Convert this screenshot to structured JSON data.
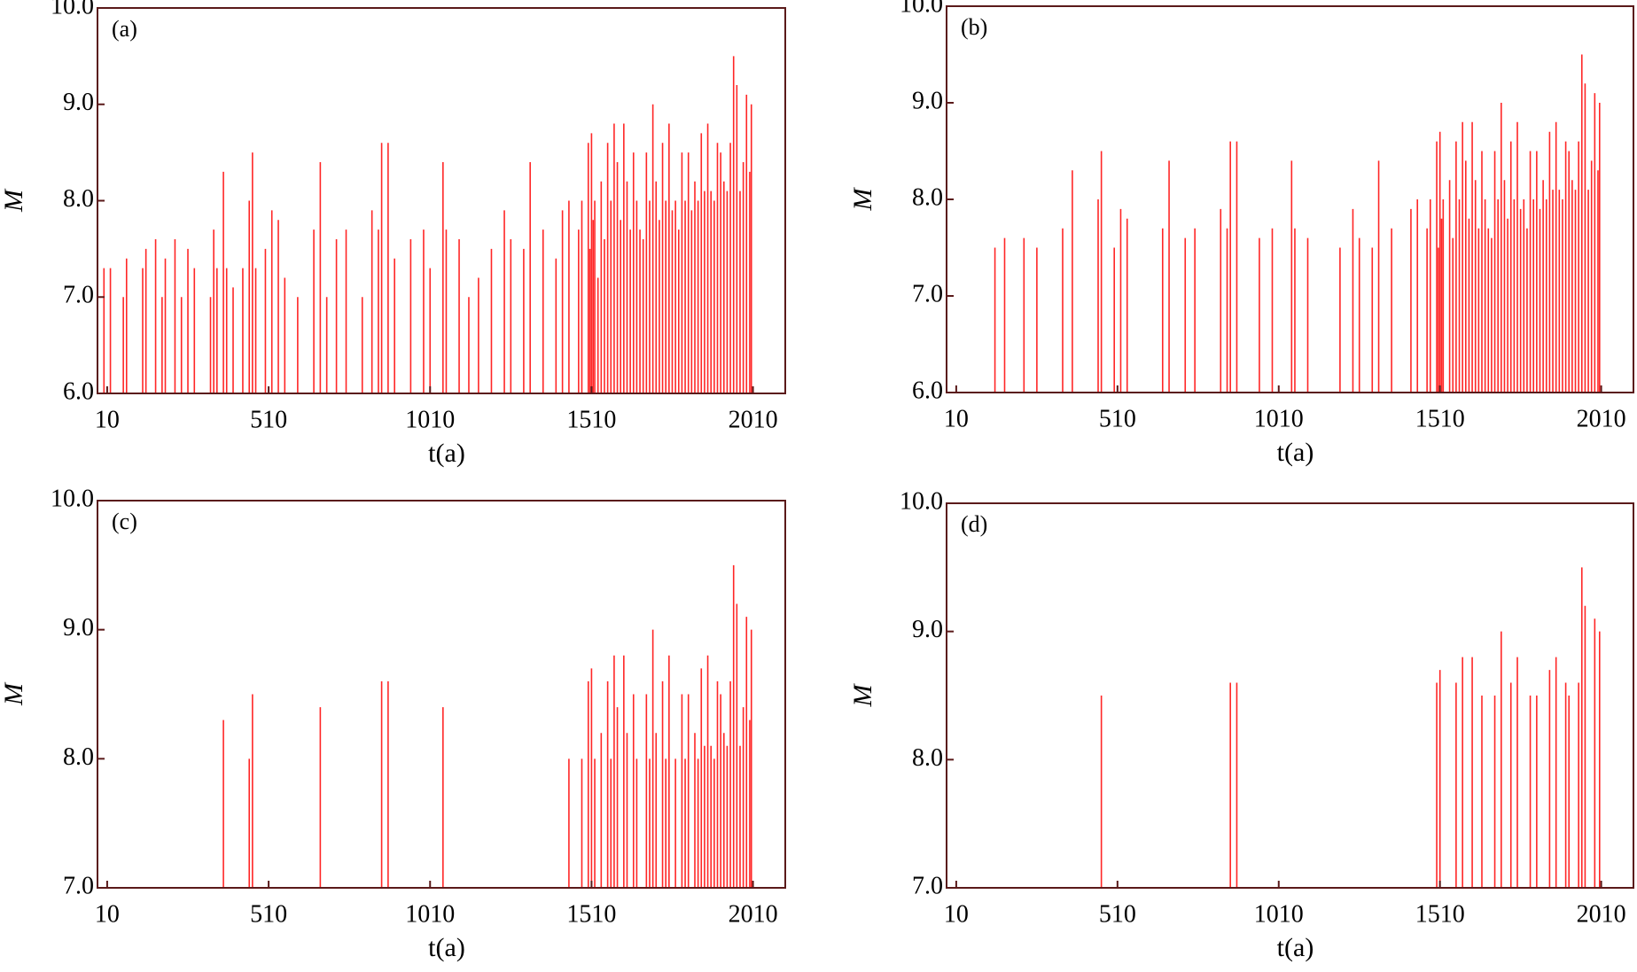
{
  "chart_data": [
    {
      "type": "stem",
      "panel_label": "(a)",
      "x_label": "t(a)",
      "y_label": "M",
      "color": "#ff0000",
      "xlim": [
        -20,
        2110
      ],
      "xticks": [
        10,
        510,
        1010,
        1510,
        2010
      ],
      "ylim": [
        6,
        10
      ],
      "yticks": [
        {
          "value": 6,
          "label": "6.0"
        },
        {
          "value": 7,
          "label": "7.0"
        },
        {
          "value": 8,
          "label": "8.0"
        },
        {
          "value": 9,
          "label": "9.0"
        },
        {
          "value": 10,
          "label": "10.0"
        }
      ],
      "x": [
        0,
        20,
        60,
        70,
        120,
        130,
        160,
        180,
        190,
        220,
        240,
        260,
        280,
        330,
        340,
        350,
        370,
        380,
        400,
        430,
        450,
        460,
        470,
        500,
        520,
        540,
        560,
        600,
        650,
        670,
        690,
        720,
        750,
        800,
        830,
        850,
        860,
        880,
        900,
        950,
        990,
        1010,
        1050,
        1060,
        1100,
        1130,
        1160,
        1200,
        1240,
        1260,
        1300,
        1320,
        1360,
        1400,
        1420,
        1440,
        1470,
        1480,
        1500,
        1505,
        1510,
        1515,
        1520,
        1530,
        1540,
        1550,
        1560,
        1570,
        1580,
        1590,
        1600,
        1610,
        1620,
        1630,
        1640,
        1650,
        1660,
        1670,
        1680,
        1690,
        1700,
        1710,
        1720,
        1730,
        1740,
        1750,
        1760,
        1770,
        1780,
        1790,
        1800,
        1810,
        1820,
        1830,
        1840,
        1850,
        1860,
        1870,
        1880,
        1890,
        1900,
        1910,
        1920,
        1930,
        1940,
        1950,
        1960,
        1970,
        1980,
        1990,
        2000,
        2005
      ],
      "values": [
        7.3,
        7.3,
        7.0,
        7.4,
        7.3,
        7.5,
        7.6,
        7.0,
        7.4,
        7.6,
        7.0,
        7.5,
        7.3,
        7.0,
        7.7,
        7.3,
        8.3,
        7.3,
        7.1,
        7.3,
        8.0,
        8.5,
        7.3,
        7.5,
        7.9,
        7.8,
        7.2,
        7.0,
        7.7,
        8.4,
        7.0,
        7.6,
        7.7,
        7.0,
        7.9,
        7.7,
        8.6,
        8.6,
        7.4,
        7.6,
        7.7,
        7.3,
        8.4,
        7.7,
        7.6,
        7.0,
        7.2,
        7.5,
        7.9,
        7.6,
        7.5,
        8.4,
        7.7,
        7.4,
        7.9,
        8.0,
        7.7,
        8.0,
        8.6,
        7.5,
        8.7,
        7.8,
        8.0,
        7.2,
        8.2,
        7.6,
        8.6,
        8.0,
        8.8,
        8.4,
        7.8,
        8.8,
        8.2,
        7.7,
        8.5,
        8.0,
        7.7,
        7.6,
        8.5,
        8.0,
        9.0,
        8.2,
        7.8,
        8.6,
        8.0,
        8.8,
        7.9,
        8.0,
        7.7,
        8.5,
        8.0,
        8.5,
        7.9,
        8.2,
        8.0,
        8.7,
        8.1,
        8.8,
        8.1,
        8.0,
        8.6,
        8.5,
        8.2,
        8.1,
        8.6,
        9.5,
        9.2,
        8.1,
        8.4,
        9.1,
        8.3,
        9.0
      ]
    },
    {
      "type": "stem",
      "panel_label": "(b)",
      "x_label": "t(a)",
      "y_label": "M",
      "color": "#ff0000",
      "xlim": [
        -20,
        2110
      ],
      "xticks": [
        10,
        510,
        1010,
        1510,
        2010
      ],
      "ylim": [
        6,
        10
      ],
      "yticks": [
        {
          "value": 6,
          "label": "6.0"
        },
        {
          "value": 7,
          "label": "7.0"
        },
        {
          "value": 8,
          "label": "8.0"
        },
        {
          "value": 9,
          "label": "9.0"
        },
        {
          "value": 10,
          "label": "10.0"
        }
      ],
      "x": [
        130,
        160,
        220,
        260,
        340,
        370,
        450,
        460,
        500,
        520,
        540,
        650,
        670,
        720,
        750,
        830,
        850,
        860,
        880,
        950,
        990,
        1050,
        1060,
        1100,
        1200,
        1240,
        1260,
        1300,
        1320,
        1360,
        1420,
        1440,
        1470,
        1480,
        1500,
        1505,
        1510,
        1515,
        1520,
        1540,
        1550,
        1560,
        1570,
        1580,
        1590,
        1600,
        1610,
        1620,
        1630,
        1640,
        1650,
        1660,
        1670,
        1680,
        1690,
        1700,
        1710,
        1720,
        1730,
        1740,
        1750,
        1760,
        1770,
        1780,
        1790,
        1800,
        1810,
        1820,
        1830,
        1840,
        1850,
        1860,
        1870,
        1880,
        1890,
        1900,
        1910,
        1920,
        1930,
        1940,
        1950,
        1960,
        1970,
        1980,
        1990,
        2000,
        2005
      ],
      "values": [
        7.5,
        7.6,
        7.6,
        7.5,
        7.7,
        8.3,
        8.0,
        8.5,
        7.5,
        7.9,
        7.8,
        7.7,
        8.4,
        7.6,
        7.7,
        7.9,
        7.7,
        8.6,
        8.6,
        7.6,
        7.7,
        8.4,
        7.7,
        7.6,
        7.5,
        7.9,
        7.6,
        7.5,
        8.4,
        7.7,
        7.9,
        8.0,
        7.7,
        8.0,
        8.6,
        7.5,
        8.7,
        7.8,
        8.0,
        8.2,
        7.6,
        8.6,
        8.0,
        8.8,
        8.4,
        7.8,
        8.8,
        8.2,
        7.7,
        8.5,
        8.0,
        7.7,
        7.6,
        8.5,
        8.0,
        9.0,
        8.2,
        7.8,
        8.6,
        8.0,
        8.8,
        7.9,
        8.0,
        7.7,
        8.5,
        8.0,
        8.5,
        7.9,
        8.2,
        8.0,
        8.7,
        8.1,
        8.8,
        8.1,
        8.0,
        8.6,
        8.5,
        8.2,
        8.1,
        8.6,
        9.5,
        9.2,
        8.1,
        8.4,
        9.1,
        8.3,
        9.0
      ]
    },
    {
      "type": "stem",
      "panel_label": "(c)",
      "x_label": "t(a)",
      "y_label": "M",
      "color": "#ff0000",
      "xlim": [
        -20,
        2110
      ],
      "xticks": [
        10,
        510,
        1010,
        1510,
        2010
      ],
      "ylim": [
        7,
        10
      ],
      "yticks": [
        {
          "value": 7,
          "label": "7.0"
        },
        {
          "value": 8,
          "label": "8.0"
        },
        {
          "value": 9,
          "label": "9.0"
        },
        {
          "value": 10,
          "label": "10.0"
        }
      ],
      "x": [
        370,
        450,
        460,
        670,
        860,
        880,
        1050,
        1440,
        1480,
        1500,
        1510,
        1520,
        1540,
        1560,
        1570,
        1580,
        1590,
        1610,
        1620,
        1640,
        1650,
        1680,
        1690,
        1700,
        1710,
        1730,
        1740,
        1750,
        1770,
        1790,
        1800,
        1810,
        1830,
        1840,
        1850,
        1860,
        1870,
        1880,
        1890,
        1900,
        1910,
        1920,
        1930,
        1940,
        1950,
        1960,
        1970,
        1980,
        1990,
        2000,
        2005
      ],
      "values": [
        8.3,
        8.0,
        8.5,
        8.4,
        8.6,
        8.6,
        8.4,
        8.0,
        8.0,
        8.6,
        8.7,
        8.0,
        8.2,
        8.6,
        8.0,
        8.8,
        8.4,
        8.8,
        8.2,
        8.5,
        8.0,
        8.5,
        8.0,
        9.0,
        8.2,
        8.6,
        8.0,
        8.8,
        8.0,
        8.5,
        8.0,
        8.5,
        8.2,
        8.0,
        8.7,
        8.1,
        8.8,
        8.1,
        8.0,
        8.6,
        8.5,
        8.2,
        8.1,
        8.6,
        9.5,
        9.2,
        8.1,
        8.4,
        9.1,
        8.3,
        9.0
      ]
    },
    {
      "type": "stem",
      "panel_label": "(d)",
      "x_label": "t(a)",
      "y_label": "M",
      "color": "#ff0000",
      "xlim": [
        -20,
        2110
      ],
      "xticks": [
        10,
        510,
        1010,
        1510,
        2010
      ],
      "ylim": [
        7,
        10
      ],
      "yticks": [
        {
          "value": 7,
          "label": "7.0"
        },
        {
          "value": 8,
          "label": "8.0"
        },
        {
          "value": 9,
          "label": "9.0"
        },
        {
          "value": 10,
          "label": "10.0"
        }
      ],
      "x": [
        460,
        860,
        880,
        1500,
        1510,
        1560,
        1580,
        1610,
        1640,
        1680,
        1700,
        1730,
        1750,
        1790,
        1810,
        1850,
        1870,
        1900,
        1910,
        1940,
        1950,
        1960,
        1990,
        2005
      ],
      "values": [
        8.5,
        8.6,
        8.6,
        8.6,
        8.7,
        8.6,
        8.8,
        8.8,
        8.5,
        8.5,
        9.0,
        8.6,
        8.8,
        8.5,
        8.5,
        8.7,
        8.8,
        8.6,
        8.5,
        8.6,
        9.5,
        9.2,
        9.1,
        9.0
      ]
    }
  ]
}
